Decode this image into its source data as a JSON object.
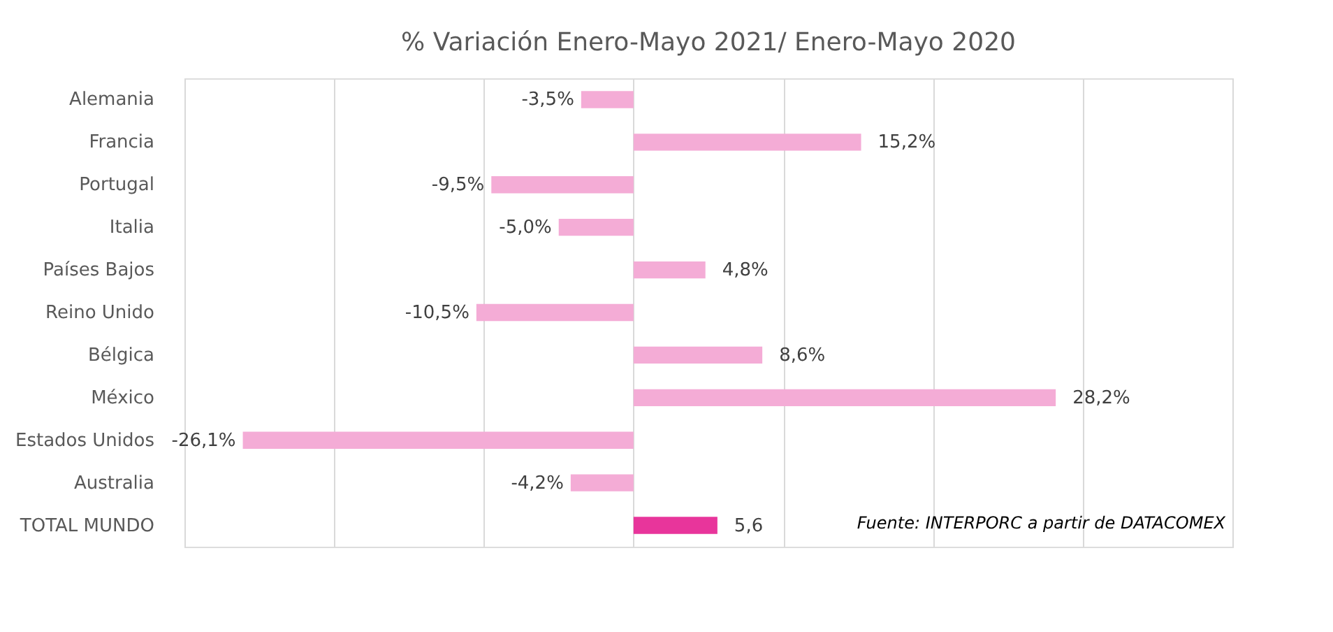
{
  "chart_data": {
    "type": "bar",
    "orientation": "horizontal",
    "title": "% Variación Enero-Mayo 2021/ Enero-Mayo 2020",
    "categories": [
      "Alemania",
      "Francia",
      "Portugal",
      "Italia",
      "Países Bajos",
      "Reino Unido",
      "Bélgica",
      "México",
      "Estados Unidos",
      "Australia",
      "TOTAL MUNDO"
    ],
    "values": [
      -3.5,
      15.2,
      -9.5,
      -5.0,
      4.8,
      -10.5,
      8.6,
      28.2,
      -26.1,
      -4.2,
      5.6
    ],
    "colors": [
      "#f4acd6",
      "#f4acd6",
      "#f4acd6",
      "#f4acd6",
      "#f4acd6",
      "#f4acd6",
      "#f4acd6",
      "#f4acd6",
      "#f4acd6",
      "#f4acd6",
      "#e8359b"
    ],
    "value_labels": [
      "-3,5%",
      "15,2%",
      "-9,5%",
      "-5,0%",
      "4,8%",
      "-10,5%",
      "8,6%",
      "28,2%",
      "-26,1%",
      "-4,2%",
      "5,6"
    ],
    "xlim": [
      -30,
      40
    ],
    "xticks": [
      {
        "value": -30,
        "label": null
      },
      {
        "value": -20,
        "label": null
      },
      {
        "value": -10,
        "label": null
      },
      {
        "value": 0,
        "label": null
      },
      {
        "value": 10,
        "label": null
      },
      {
        "value": 20,
        "label": null
      },
      {
        "value": 30,
        "label": null
      },
      {
        "value": 40,
        "label": null
      }
    ],
    "tick_labels": "y",
    "grid": "x",
    "annotations": [
      "Fuente: INTERPORC  a partir de DATACOMEX"
    ]
  }
}
